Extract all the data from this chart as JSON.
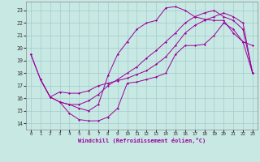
{
  "xlabel": "Windchill (Refroidissement éolien,°C)",
  "bg_color": "#c8e8e4",
  "grid_color": "#a0cccc",
  "line_color": "#990099",
  "x_ticks": [
    0,
    1,
    2,
    3,
    4,
    5,
    6,
    7,
    8,
    9,
    10,
    11,
    12,
    13,
    14,
    15,
    16,
    17,
    18,
    19,
    20,
    21,
    22,
    23
  ],
  "y_ticks": [
    14,
    15,
    16,
    17,
    18,
    19,
    20,
    21,
    22,
    23
  ],
  "xlim": [
    -0.5,
    23.5
  ],
  "ylim": [
    13.5,
    23.7
  ],
  "series": [
    {
      "x": [
        0,
        1,
        2,
        3,
        4,
        5,
        6,
        7,
        8,
        9,
        10,
        11,
        12,
        13,
        14,
        15,
        16,
        17,
        18,
        19,
        20,
        21,
        22,
        23
      ],
      "y": [
        19.5,
        17.5,
        16.1,
        15.7,
        14.8,
        14.3,
        14.2,
        14.2,
        14.5,
        15.2,
        17.2,
        17.3,
        17.5,
        17.7,
        18.0,
        19.5,
        20.2,
        20.2,
        20.3,
        21.0,
        22.0,
        21.5,
        20.5,
        20.2
      ]
    },
    {
      "x": [
        1,
        2,
        3,
        4,
        5,
        6,
        7,
        8,
        9,
        10,
        11,
        12,
        13,
        14,
        15,
        16,
        17,
        18,
        19,
        20,
        21,
        22,
        23
      ],
      "y": [
        17.5,
        16.1,
        16.5,
        16.4,
        16.4,
        16.6,
        17.0,
        17.2,
        17.4,
        17.6,
        17.9,
        18.2,
        18.7,
        19.3,
        20.2,
        21.2,
        21.8,
        22.2,
        22.5,
        22.8,
        22.5,
        22.0,
        18.0
      ]
    },
    {
      "x": [
        0,
        1,
        2,
        3,
        4,
        5,
        6,
        7,
        8,
        9,
        10,
        11,
        12,
        13,
        14,
        15,
        16,
        17,
        18,
        19,
        20,
        21,
        22,
        23
      ],
      "y": [
        19.5,
        17.5,
        16.1,
        15.7,
        15.5,
        15.2,
        15.0,
        15.5,
        17.8,
        19.5,
        20.5,
        21.5,
        22.0,
        22.2,
        23.2,
        23.3,
        23.0,
        22.5,
        22.3,
        22.2,
        22.2,
        21.2,
        20.5,
        18.0
      ]
    },
    {
      "x": [
        3,
        4,
        5,
        6,
        7,
        8,
        9,
        10,
        11,
        12,
        13,
        14,
        15,
        16,
        17,
        18,
        19,
        20,
        21,
        22,
        23
      ],
      "y": [
        15.7,
        15.5,
        15.5,
        15.8,
        16.3,
        17.0,
        17.5,
        18.0,
        18.5,
        19.2,
        19.8,
        20.5,
        21.2,
        22.0,
        22.5,
        22.8,
        23.0,
        22.5,
        22.2,
        21.5,
        18.0
      ]
    }
  ]
}
